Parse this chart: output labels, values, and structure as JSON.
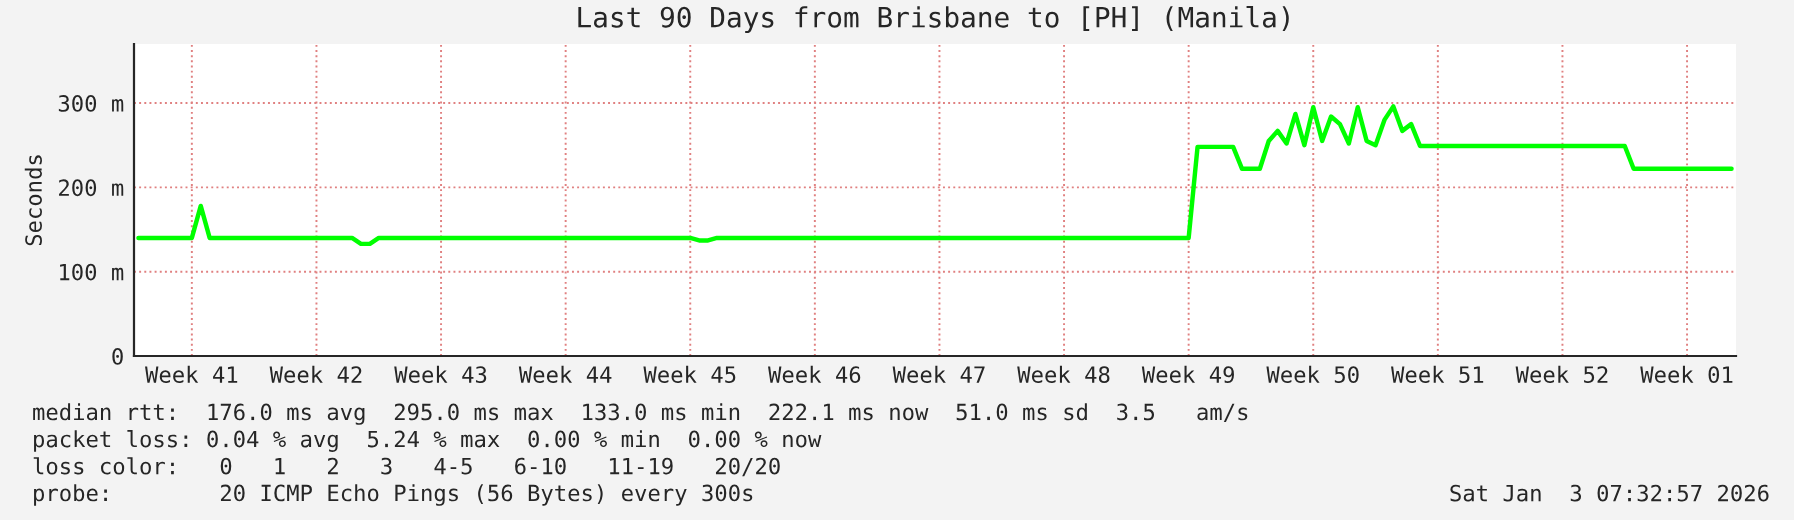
{
  "chart_data": {
    "type": "line",
    "title": "Last 90 Days from Brisbane to [PH] (Manila)",
    "ylabel": "Seconds",
    "categories": [
      null,
      null,
      null,
      null,
      null,
      null,
      "Week 41",
      null,
      null,
      null,
      null,
      null,
      null,
      null,
      null,
      null,
      null,
      null,
      null,
      null,
      "Week 42",
      null,
      null,
      null,
      null,
      null,
      null,
      null,
      null,
      null,
      null,
      null,
      null,
      null,
      "Week 43",
      null,
      null,
      null,
      null,
      null,
      null,
      null,
      null,
      null,
      null,
      null,
      null,
      null,
      "Week 44",
      null,
      null,
      null,
      null,
      null,
      null,
      null,
      null,
      null,
      null,
      null,
      null,
      null,
      "Week 45",
      null,
      null,
      null,
      null,
      null,
      null,
      null,
      null,
      null,
      null,
      null,
      null,
      null,
      "Week 46",
      null,
      null,
      null,
      null,
      null,
      null,
      null,
      null,
      null,
      null,
      null,
      null,
      null,
      "Week 47",
      null,
      null,
      null,
      null,
      null,
      null,
      null,
      null,
      null,
      null,
      null,
      null,
      null,
      "Week 48",
      null,
      null,
      null,
      null,
      null,
      null,
      null,
      null,
      null,
      null,
      null,
      null,
      null,
      "Week 49",
      null,
      null,
      null,
      null,
      null,
      null,
      null,
      null,
      null,
      null,
      null,
      null,
      null,
      "Week 50",
      null,
      null,
      null,
      null,
      null,
      null,
      null,
      null,
      null,
      null,
      null,
      null,
      null,
      "Week 51",
      null,
      null,
      null,
      null,
      null,
      null,
      null,
      null,
      null,
      null,
      null,
      null,
      null,
      "Week 52",
      null,
      null,
      null,
      null,
      null,
      null,
      null,
      null,
      null,
      null,
      null,
      null,
      null,
      "Week 01",
      null,
      null,
      null,
      null,
      null
    ],
    "series": [
      {
        "color": "#00ff00",
        "values": [
          140,
          140,
          140,
          140,
          140,
          140,
          140,
          178,
          140,
          140,
          140,
          140,
          140,
          140,
          140,
          140,
          140,
          140,
          140,
          140,
          140,
          140,
          140,
          140,
          140,
          133,
          133,
          140,
          140,
          140,
          140,
          140,
          140,
          140,
          140,
          140,
          140,
          140,
          140,
          140,
          140,
          140,
          140,
          140,
          140,
          140,
          140,
          140,
          140,
          140,
          140,
          140,
          140,
          140,
          140,
          140,
          140,
          140,
          140,
          140,
          140,
          140,
          140,
          137,
          137,
          140,
          140,
          140,
          140,
          140,
          140,
          140,
          140,
          140,
          140,
          140,
          140,
          140,
          140,
          140,
          140,
          140,
          140,
          140,
          140,
          140,
          140,
          140,
          140,
          140,
          140,
          140,
          140,
          140,
          140,
          140,
          140,
          140,
          140,
          140,
          140,
          140,
          140,
          140,
          140,
          140,
          140,
          140,
          140,
          140,
          140,
          140,
          140,
          140,
          140,
          140,
          140,
          140,
          140,
          248,
          248,
          248,
          248,
          248,
          222,
          222,
          222,
          255,
          267,
          252,
          287,
          250,
          295,
          255,
          284,
          275,
          252,
          295,
          255,
          250,
          280,
          296,
          267,
          275,
          249,
          249,
          249,
          249,
          249,
          249,
          249,
          249,
          249,
          249,
          249,
          249,
          249,
          249,
          249,
          249,
          249,
          249,
          249,
          249,
          249,
          249,
          249,
          249,
          222,
          222,
          222,
          222,
          222,
          222,
          222,
          222,
          222,
          222,
          222,
          222
        ]
      }
    ],
    "ylim": [
      0,
      370
    ],
    "yticks": [
      0,
      {
        "value": 100,
        "label": "100 m"
      },
      {
        "value": 200,
        "label": "200 m"
      },
      {
        "value": 300,
        "label": "300 m"
      }
    ],
    "grid": true,
    "legend": false,
    "marker": "none",
    "line_style": "solid",
    "annotations": [
      "median rtt:  176.0 ms avg  295.0 ms max  133.0 ms min  222.1 ms now  51.0 ms sd  3.5   am/s",
      "packet loss: 0.04 % avg  5.24 % max  0.00 % min  0.00 % now",
      "loss color:   0   1   2   3   4-5   6-10   11-19   20/20",
      "probe:        20 ICMP Echo Pings (56 Bytes) every 300s",
      "Sat Jan  3 07:32:57 2026"
    ]
  }
}
